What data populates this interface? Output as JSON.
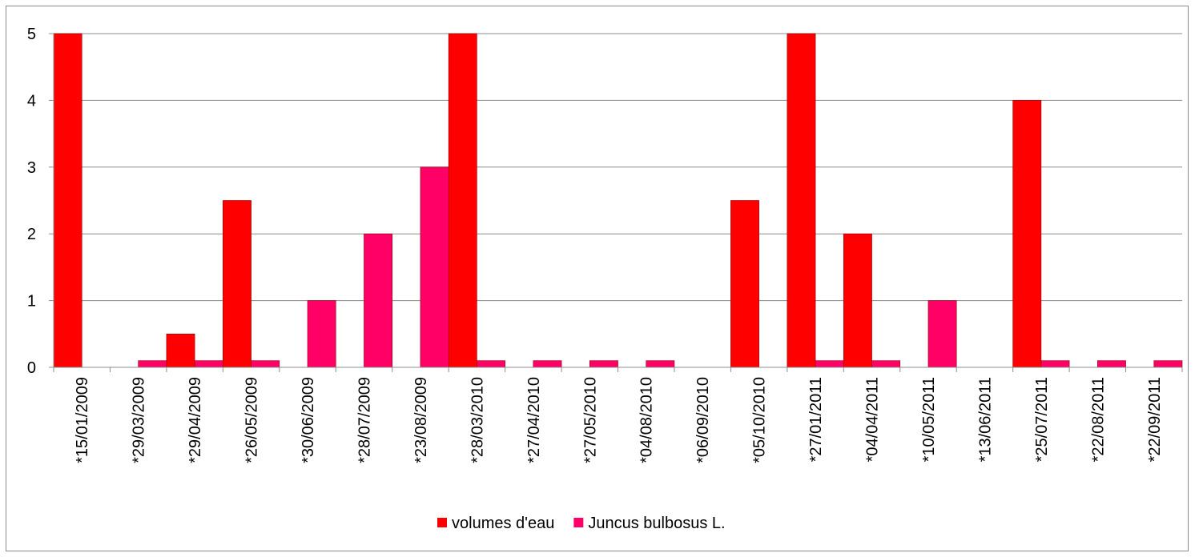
{
  "chart_data": {
    "type": "bar",
    "categories": [
      "*15/01/2009",
      "*29/03/2009",
      "*29/04/2009",
      "*26/05/2009",
      "*30/06/2009",
      "*28/07/2009",
      "*23/08/2009",
      "*28/03/2010",
      "*27/04/2010",
      "*27/05/2010",
      "*04/08/2010",
      "*06/09/2010",
      "*05/10/2010",
      "*27/01/2011",
      "*04/04/2011",
      "*10/05/2011",
      "*13/06/2011",
      "*25/07/2011",
      "*22/08/2011",
      "*22/09/2011"
    ],
    "series": [
      {
        "name": "volumes d'eau",
        "color": "#ff0000",
        "values": [
          5,
          0,
          0.5,
          2.5,
          0,
          0,
          0,
          5,
          0,
          0,
          0,
          0,
          2.5,
          5,
          2,
          0,
          0,
          4,
          0,
          0
        ]
      },
      {
        "name": "Juncus bulbosus L.",
        "color": "#ff0066",
        "values": [
          0,
          0.1,
          0.1,
          0.1,
          1,
          2,
          3,
          0.1,
          0.1,
          0.1,
          0.1,
          0,
          0,
          0.1,
          0.1,
          1,
          0,
          0.1,
          0.1,
          0.1
        ]
      }
    ],
    "ylim": [
      0,
      5
    ],
    "yticks": [
      0,
      1,
      2,
      3,
      4,
      5
    ],
    "grid": true,
    "legend_position": "bottom"
  }
}
